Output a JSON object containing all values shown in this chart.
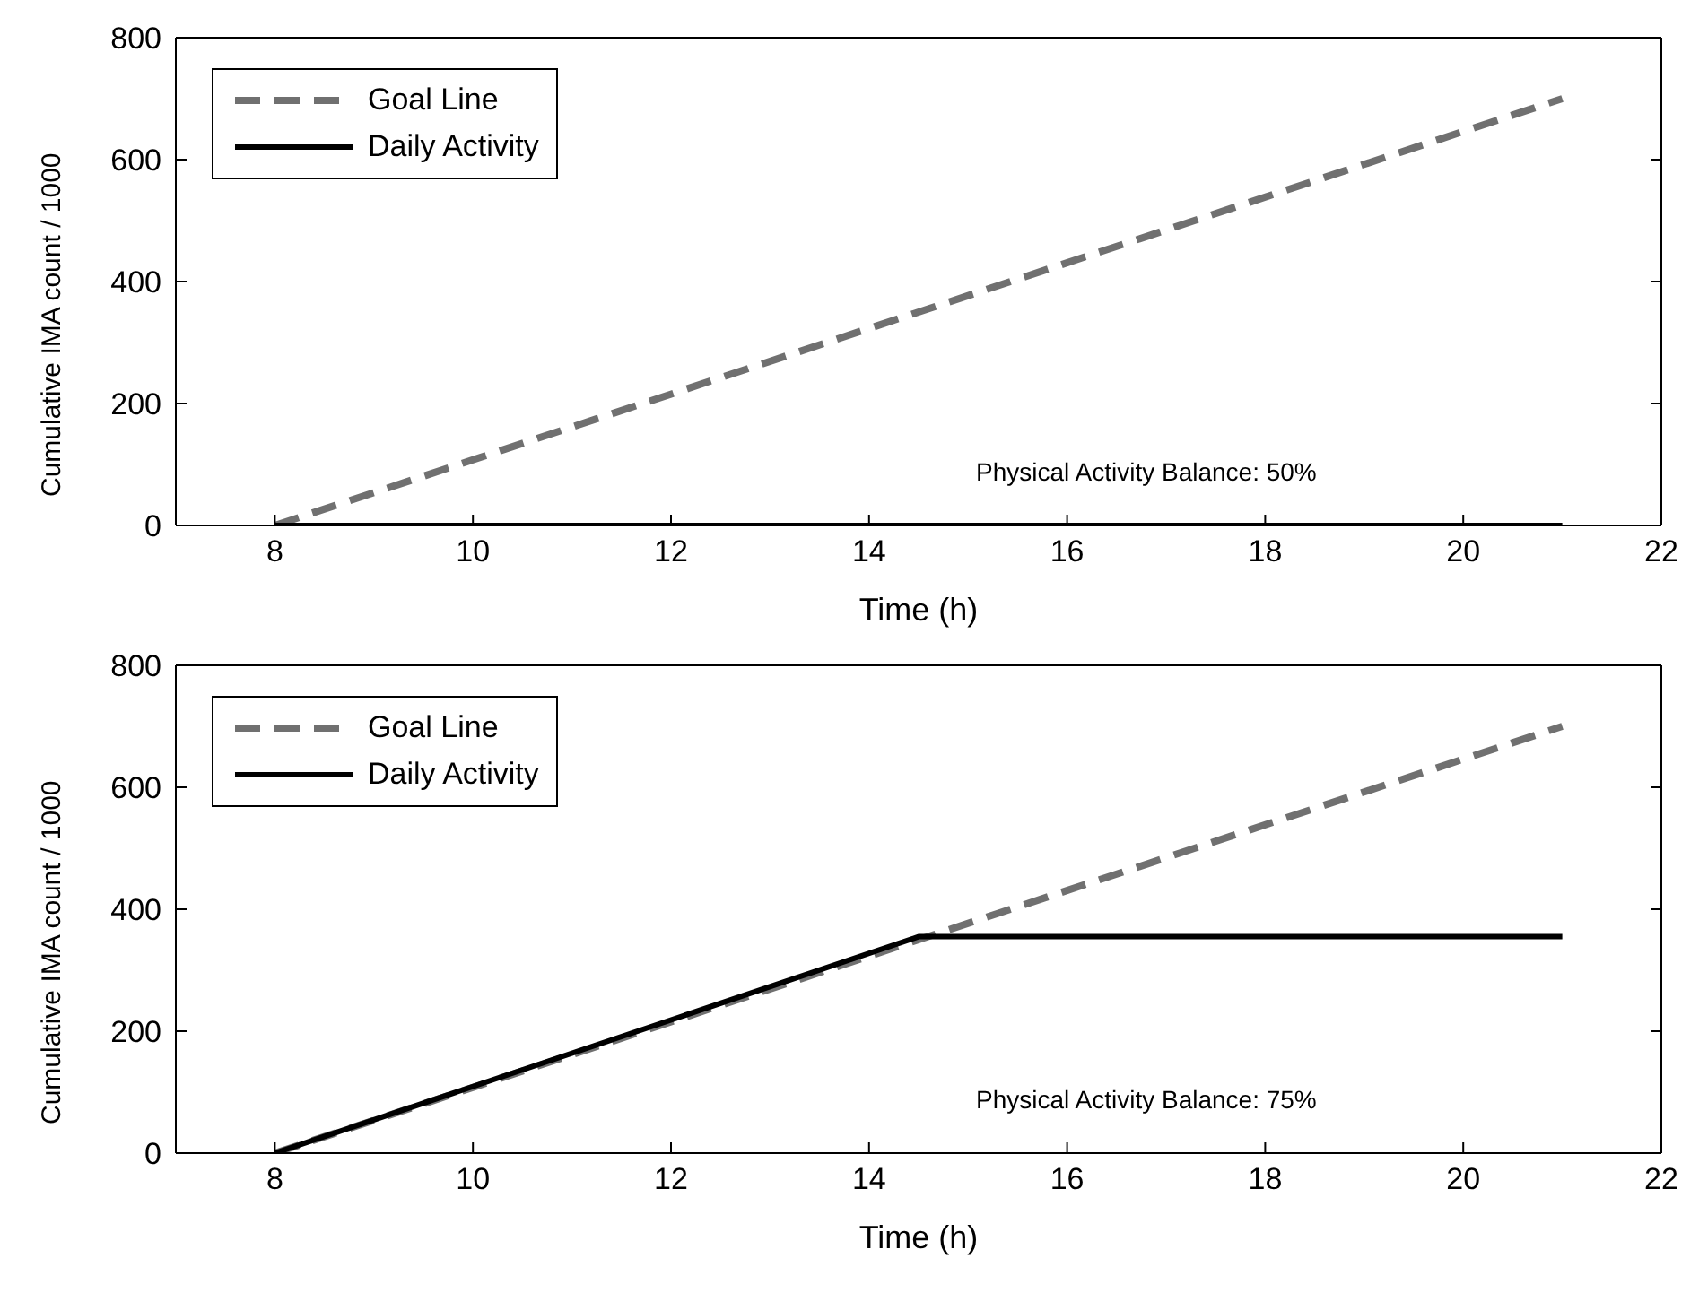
{
  "chart_data": [
    {
      "type": "line",
      "xlabel": "Time (h)",
      "ylabel": "Cumulative IMA count / 1000",
      "xlim": [
        7,
        22
      ],
      "xticks": [
        8,
        10,
        12,
        14,
        16,
        18,
        20,
        22
      ],
      "ylim": [
        0,
        800
      ],
      "yticks": [
        0,
        200,
        400,
        600,
        800
      ],
      "legend": "top left",
      "grid": false,
      "annotations": [
        "Physical Activity Balance: 50%"
      ],
      "series": [
        {
          "name": "Goal Line",
          "color": "#707070",
          "line_style": "dashed",
          "x": [
            8,
            21
          ],
          "values": [
            0,
            700
          ]
        },
        {
          "name": "Daily Activity",
          "color": "#000000",
          "line_style": "solid",
          "x": [
            8,
            21
          ],
          "values": [
            0,
            0
          ]
        }
      ]
    },
    {
      "type": "line",
      "xlabel": "Time (h)",
      "ylabel": "Cumulative IMA count / 1000",
      "xlim": [
        7,
        22
      ],
      "xticks": [
        8,
        10,
        12,
        14,
        16,
        18,
        20,
        22
      ],
      "ylim": [
        0,
        800
      ],
      "yticks": [
        0,
        200,
        400,
        600,
        800
      ],
      "legend": "top left",
      "grid": false,
      "annotations": [
        "Physical Activity Balance: 75%"
      ],
      "series": [
        {
          "name": "Goal Line",
          "color": "#707070",
          "line_style": "dashed",
          "x": [
            8,
            21
          ],
          "values": [
            0,
            700
          ]
        },
        {
          "name": "Daily Activity",
          "color": "#000000",
          "line_style": "solid",
          "x": [
            8,
            14.5,
            21
          ],
          "values": [
            0,
            355,
            355
          ]
        }
      ]
    }
  ]
}
